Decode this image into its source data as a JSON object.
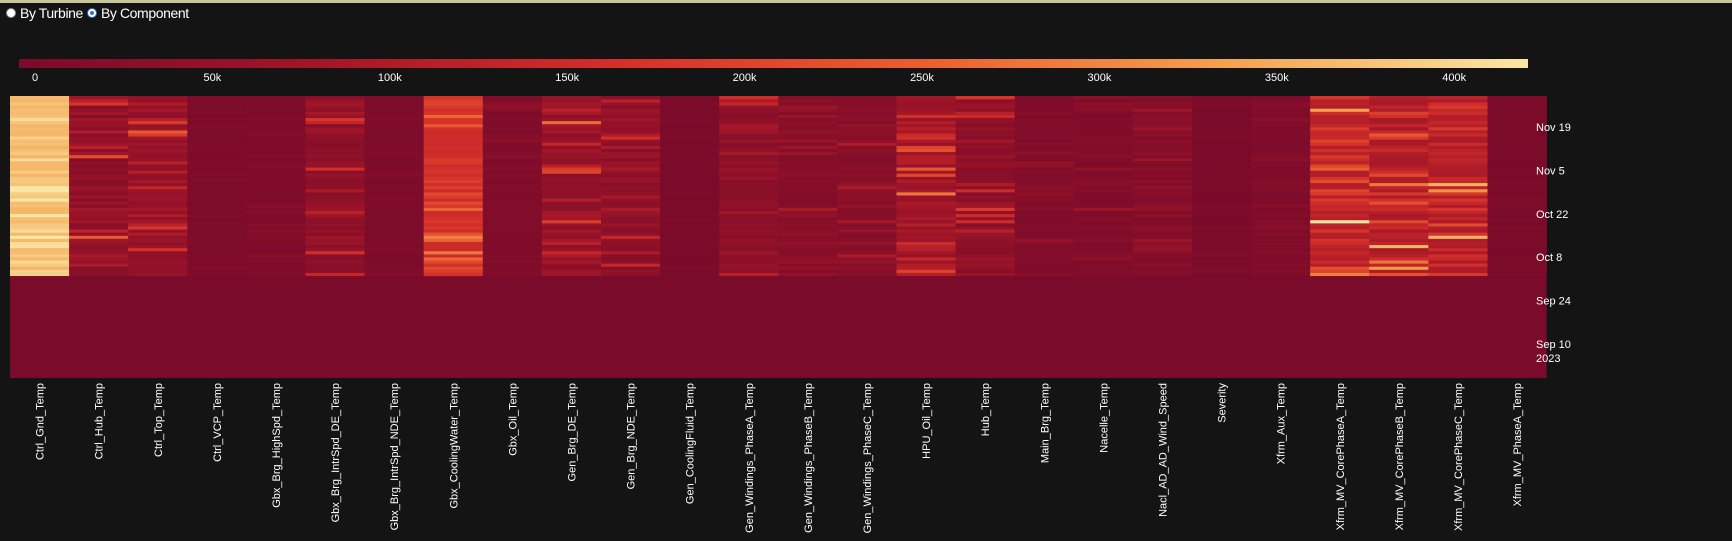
{
  "view_toggle": {
    "options": [
      {
        "label": "By Turbine",
        "selected": false
      },
      {
        "label": "By Component",
        "selected": true
      }
    ]
  },
  "chart_data": {
    "type": "heatmap",
    "title": "",
    "xlabel": "",
    "ylabel": "",
    "colorscale": [
      "#7a0b2a",
      "#a31628",
      "#d5302a",
      "#ea5f30",
      "#f3a24e",
      "#fbe6a6"
    ],
    "colorbar": {
      "range": [
        0,
        420000
      ],
      "ticks": [
        0,
        50000,
        100000,
        150000,
        200000,
        250000,
        300000,
        350000,
        400000
      ],
      "tick_labels": [
        "0",
        "50k",
        "100k",
        "150k",
        "200k",
        "250k",
        "300k",
        "350k",
        "400k"
      ],
      "placement": "top"
    },
    "x_categories": [
      "Ctrl_Gnd_Temp",
      "Ctrl_Hub_Temp",
      "Ctrl_Top_Temp",
      "Ctrl_VCP_Temp",
      "Gbx_Brg_HighSpd_Temp",
      "Gbx_Brg_IntrSpd_DE_Temp",
      "Gbx_Brg_IntrSpd_NDE_Temp",
      "Gbx_CoolingWater_Temp",
      "Gbx_Oil_Temp",
      "Gen_Brg_DE_Temp",
      "Gen_Brg_NDE_Temp",
      "Gen_CoolingFluid_Temp",
      "Gen_Windings_PhaseA_Temp",
      "Gen_Windings_PhaseB_Temp",
      "Gen_Windings_PhaseC_Temp",
      "HPU_Oil_Temp",
      "Hub_Temp",
      "Main_Brg_Temp",
      "Nacelle_Temp",
      "Nacl_AD_AD_Wind_Speed",
      "Severity",
      "Xfrm_Aux_Temp",
      "Xfrm_MV_CorePhaseA_Temp",
      "Xfrm_MV_CorePhaseB_Temp",
      "Xfrm_MV_CorePhaseC_Temp",
      "Xfrm_MV_PhaseA_Temp"
    ],
    "y_axis": {
      "type": "date",
      "range": [
        "2023-08-30",
        "2023-11-29"
      ],
      "ticks": [
        {
          "date": "2023-11-19",
          "label": "Nov 19"
        },
        {
          "date": "2023-11-05",
          "label": "Nov 5"
        },
        {
          "date": "2023-10-22",
          "label": "Oct 22"
        },
        {
          "date": "2023-10-08",
          "label": "Oct 8"
        },
        {
          "date": "2023-09-24",
          "label": "Sep 24"
        },
        {
          "date": "2023-09-10",
          "label": "Sep 10",
          "sublabel": "2023"
        }
      ],
      "placement": "right"
    },
    "data_window": [
      "2023-10-02",
      "2023-11-29"
    ],
    "column_profiles": [
      {
        "level": 360000,
        "var": 70000
      },
      {
        "level": 25000,
        "var": 110000
      },
      {
        "level": 45000,
        "var": 95000
      },
      {
        "level": 5000,
        "var": 12000
      },
      {
        "level": 8000,
        "var": 15000
      },
      {
        "level": 30000,
        "var": 70000
      },
      {
        "level": 5000,
        "var": 10000
      },
      {
        "level": 150000,
        "var": 90000
      },
      {
        "level": 10000,
        "var": 20000
      },
      {
        "level": 35000,
        "var": 110000
      },
      {
        "level": 30000,
        "var": 90000
      },
      {
        "level": 2000,
        "var": 5000
      },
      {
        "level": 30000,
        "var": 70000
      },
      {
        "level": 20000,
        "var": 50000
      },
      {
        "level": 20000,
        "var": 50000
      },
      {
        "level": 60000,
        "var": 110000
      },
      {
        "level": 25000,
        "var": 100000
      },
      {
        "level": 10000,
        "var": 25000
      },
      {
        "level": 10000,
        "var": 40000
      },
      {
        "level": 15000,
        "var": 40000
      },
      {
        "level": 2000,
        "var": 5000
      },
      {
        "level": 8000,
        "var": 20000
      },
      {
        "level": 110000,
        "var": 150000
      },
      {
        "level": 90000,
        "var": 150000
      },
      {
        "level": 100000,
        "var": 160000
      },
      {
        "level": 2000,
        "var": 5000
      }
    ]
  }
}
